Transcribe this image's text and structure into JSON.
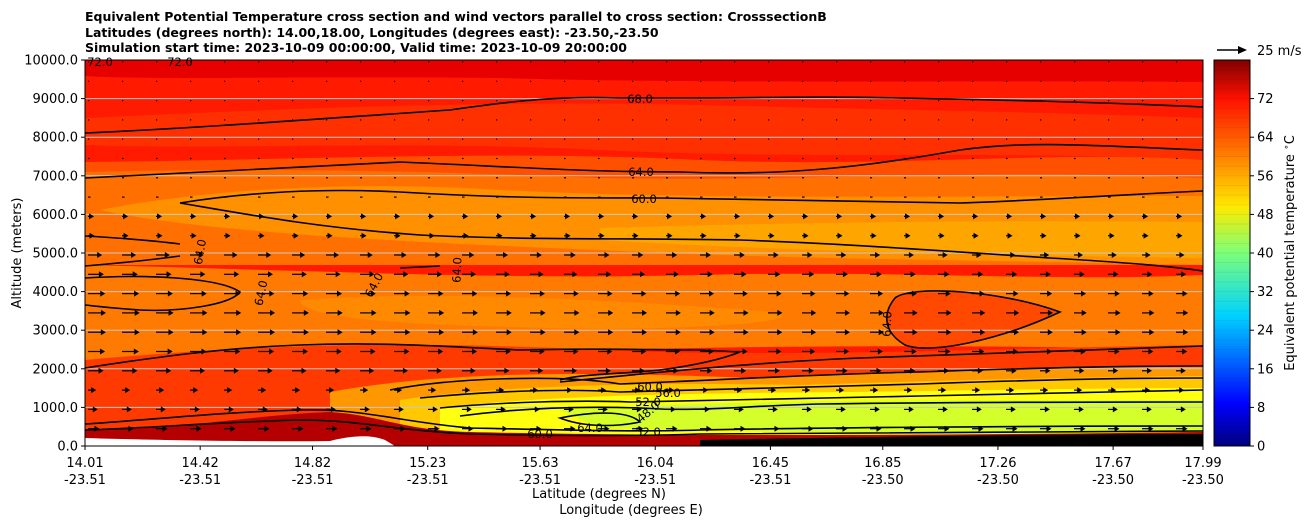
{
  "title_lines": [
    "Equivalent Potential Temperature cross section and wind vectors parallel to cross section: CrosssectionB",
    "Latitudes (degrees north): 14.00,18.00, Longitudes (degrees east): -23.50,-23.50",
    "Simulation start time: 2023-10-09 00:00:00, Valid time: 2023-10-09 20:00:00"
  ],
  "wind_key": {
    "label": "25 m/s",
    "value": 25
  },
  "chart_data": {
    "type": "contourf",
    "xlabel_1": "Latitude (degrees N)",
    "xlabel_2": "Longitude (degrees E)",
    "ylabel": "Altitude (meters)",
    "ylim": [
      0,
      10000
    ],
    "yticks": [
      0,
      1000,
      2000,
      3000,
      4000,
      5000,
      6000,
      7000,
      8000,
      9000,
      10000
    ],
    "ytick_labels": [
      "0.0",
      "1000.0",
      "2000.0",
      "3000.0",
      "4000.0",
      "5000.0",
      "6000.0",
      "7000.0",
      "8000.0",
      "9000.0",
      "10000.0"
    ],
    "xticks": [
      {
        "lat": "14.01",
        "lon": "-23.51"
      },
      {
        "lat": "14.42",
        "lon": "-23.51"
      },
      {
        "lat": "14.82",
        "lon": "-23.51"
      },
      {
        "lat": "15.23",
        "lon": "-23.51"
      },
      {
        "lat": "15.63",
        "lon": "-23.51"
      },
      {
        "lat": "16.04",
        "lon": "-23.51"
      },
      {
        "lat": "16.45",
        "lon": "-23.51"
      },
      {
        "lat": "16.85",
        "lon": "-23.50"
      },
      {
        "lat": "17.26",
        "lon": "-23.50"
      },
      {
        "lat": "17.67",
        "lon": "-23.50"
      },
      {
        "lat": "17.99",
        "lon": "-23.50"
      }
    ],
    "grid": "horizontal",
    "colorbar": {
      "label": "Equivalent potential temperature $^\\circ$C",
      "range": [
        0,
        80
      ],
      "ticks": [
        0,
        8,
        16,
        24,
        32,
        40,
        48,
        56,
        64,
        72
      ],
      "tick_labels": [
        "0",
        "8",
        "16",
        "24",
        "32",
        "40",
        "48",
        "56",
        "64",
        "72"
      ],
      "colormap": "jet"
    },
    "contour_labels": [
      "68.0",
      "64.0",
      "60.0",
      "64.0",
      "64.0",
      "64.0",
      "64.0",
      "64.0",
      "60.0",
      "56.0",
      "52.0",
      "48.0",
      "60.0",
      "64.0",
      "52.0",
      "72.0",
      "72.0"
    ],
    "wind_vectors": "mostly southward-to-northward along section, strongest (about 10-15 m/s) between 1500 and 5000 m"
  }
}
